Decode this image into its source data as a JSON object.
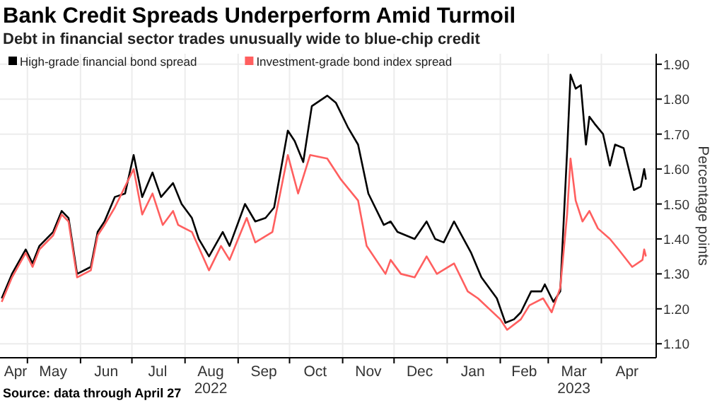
{
  "chart_data": {
    "type": "line",
    "title": "Bank Credit Spreads Underperform Amid Turmoil",
    "subtitle": "Debt in financial sector trades unusually wide to blue-chip credit",
    "ylabel": "Percentage points",
    "annotations": [
      "Source: data through April 27"
    ],
    "legend": "top left",
    "grid": true,
    "line_style": "solid",
    "marker": "none",
    "xlim": [
      "2022-04-15",
      "2023-05-03"
    ],
    "xticks": [
      {
        "value": "2022-04-15",
        "label": "Apr"
      },
      {
        "value": "2022-05-01",
        "label": null
      },
      {
        "value": "2022-05-16",
        "label": "May"
      },
      {
        "value": "2022-06-01",
        "label": null
      },
      {
        "value": "2022-06-16",
        "label": "Jun"
      },
      {
        "value": "2022-07-01",
        "label": null
      },
      {
        "value": "2022-07-16",
        "label": "Jul"
      },
      {
        "value": "2022-08-01",
        "label": null
      },
      {
        "value": "2022-08-16",
        "label": "Aug\n2022"
      },
      {
        "value": "2022-09-01",
        "label": null
      },
      {
        "value": "2022-09-16",
        "label": "Sep"
      },
      {
        "value": "2022-10-01",
        "label": null
      },
      {
        "value": "2022-10-16",
        "label": "Oct"
      },
      {
        "value": "2022-11-01",
        "label": null
      },
      {
        "value": "2022-11-16",
        "label": "Nov"
      },
      {
        "value": "2022-12-01",
        "label": null
      },
      {
        "value": "2022-12-16",
        "label": "Dec"
      },
      {
        "value": "2023-01-01",
        "label": null
      },
      {
        "value": "2023-01-16",
        "label": "Jan"
      },
      {
        "value": "2023-02-01",
        "label": null
      },
      {
        "value": "2023-02-15",
        "label": "Feb"
      },
      {
        "value": "2023-03-01",
        "label": null
      },
      {
        "value": "2023-03-16",
        "label": "Mar\n2023"
      },
      {
        "value": "2023-04-01",
        "label": null
      },
      {
        "value": "2023-04-16",
        "label": "Apr"
      }
    ],
    "ylim": [
      1.06,
      1.93
    ],
    "yticks": [
      {
        "value": 1.1,
        "label": "1.10"
      },
      {
        "value": 1.2,
        "label": "1.20"
      },
      {
        "value": 1.3,
        "label": "1.30"
      },
      {
        "value": 1.4,
        "label": "1.40"
      },
      {
        "value": 1.5,
        "label": "1.50"
      },
      {
        "value": 1.6,
        "label": "1.60"
      },
      {
        "value": 1.7,
        "label": "1.70"
      },
      {
        "value": 1.8,
        "label": "1.80"
      },
      {
        "value": 1.9,
        "label": "1.90"
      }
    ],
    "series": [
      {
        "name": "High-grade financial bond spread",
        "color": "#000000",
        "x": [
          "2022-04-16",
          "2022-04-22",
          "2022-04-30",
          "2022-05-04",
          "2022-05-08",
          "2022-05-16",
          "2022-05-21",
          "2022-05-25",
          "2022-05-30",
          "2022-06-07",
          "2022-06-11",
          "2022-06-15",
          "2022-06-21",
          "2022-06-27",
          "2022-07-02",
          "2022-07-07",
          "2022-07-13",
          "2022-07-18",
          "2022-07-25",
          "2022-07-30",
          "2022-08-05",
          "2022-08-09",
          "2022-08-15",
          "2022-08-23",
          "2022-08-27",
          "2022-09-05",
          "2022-09-11",
          "2022-09-17",
          "2022-09-22",
          "2022-09-30",
          "2022-10-04",
          "2022-10-09",
          "2022-10-14",
          "2022-10-23",
          "2022-10-28",
          "2022-11-04",
          "2022-11-10",
          "2022-11-16",
          "2022-11-25",
          "2022-11-29",
          "2022-12-03",
          "2022-12-13",
          "2022-12-20",
          "2022-12-25",
          "2022-12-30",
          "2023-01-05",
          "2023-01-15",
          "2023-01-21",
          "2023-01-30",
          "2023-02-04",
          "2023-02-09",
          "2023-02-13",
          "2023-02-19",
          "2023-02-25",
          "2023-02-27",
          "2023-03-04",
          "2023-03-08",
          "2023-03-12",
          "2023-03-14",
          "2023-03-17",
          "2023-03-20",
          "2023-03-23",
          "2023-03-25",
          "2023-03-28",
          "2023-04-02",
          "2023-04-06",
          "2023-04-09",
          "2023-04-14",
          "2023-04-20",
          "2023-04-24",
          "2023-04-26",
          "2023-04-27"
        ],
        "values": [
          1.23,
          1.3,
          1.37,
          1.33,
          1.38,
          1.42,
          1.48,
          1.46,
          1.3,
          1.32,
          1.42,
          1.45,
          1.52,
          1.53,
          1.64,
          1.52,
          1.59,
          1.52,
          1.56,
          1.5,
          1.46,
          1.4,
          1.35,
          1.42,
          1.38,
          1.5,
          1.45,
          1.46,
          1.49,
          1.71,
          1.68,
          1.62,
          1.78,
          1.81,
          1.79,
          1.72,
          1.67,
          1.53,
          1.44,
          1.45,
          1.42,
          1.4,
          1.45,
          1.4,
          1.39,
          1.45,
          1.36,
          1.29,
          1.23,
          1.16,
          1.17,
          1.19,
          1.25,
          1.25,
          1.27,
          1.22,
          1.25,
          1.65,
          1.87,
          1.83,
          1.84,
          1.67,
          1.75,
          1.73,
          1.7,
          1.61,
          1.67,
          1.66,
          1.54,
          1.55,
          1.6,
          1.57
        ]
      },
      {
        "name": "Investment-grade bond index spread",
        "color": "#ff5f5f",
        "x": [
          "2022-04-16",
          "2022-04-22",
          "2022-04-30",
          "2022-05-04",
          "2022-05-08",
          "2022-05-16",
          "2022-05-21",
          "2022-05-25",
          "2022-05-30",
          "2022-06-07",
          "2022-06-11",
          "2022-06-15",
          "2022-06-21",
          "2022-07-02",
          "2022-07-07",
          "2022-07-13",
          "2022-07-19",
          "2022-07-25",
          "2022-07-28",
          "2022-08-05",
          "2022-08-15",
          "2022-08-22",
          "2022-08-27",
          "2022-09-06",
          "2022-09-11",
          "2022-09-21",
          "2022-09-30",
          "2022-10-06",
          "2022-10-13",
          "2022-10-23",
          "2022-10-31",
          "2022-11-10",
          "2022-11-15",
          "2022-11-26",
          "2022-11-29",
          "2022-12-05",
          "2022-12-13",
          "2022-12-20",
          "2022-12-26",
          "2023-01-05",
          "2023-01-13",
          "2023-01-19",
          "2023-02-01",
          "2023-02-05",
          "2023-02-13",
          "2023-02-18",
          "2023-02-26",
          "2023-03-03",
          "2023-03-08",
          "2023-03-12",
          "2023-03-14",
          "2023-03-17",
          "2023-03-21",
          "2023-03-25",
          "2023-03-30",
          "2023-04-06",
          "2023-04-11",
          "2023-04-19",
          "2023-04-25",
          "2023-04-26",
          "2023-04-27"
        ],
        "values": [
          1.22,
          1.29,
          1.36,
          1.32,
          1.37,
          1.41,
          1.47,
          1.45,
          1.29,
          1.31,
          1.41,
          1.44,
          1.49,
          1.6,
          1.47,
          1.53,
          1.44,
          1.48,
          1.44,
          1.42,
          1.31,
          1.38,
          1.34,
          1.46,
          1.39,
          1.42,
          1.64,
          1.53,
          1.64,
          1.63,
          1.57,
          1.51,
          1.38,
          1.3,
          1.34,
          1.3,
          1.29,
          1.35,
          1.3,
          1.33,
          1.25,
          1.23,
          1.17,
          1.14,
          1.17,
          1.21,
          1.23,
          1.19,
          1.26,
          1.47,
          1.63,
          1.51,
          1.45,
          1.48,
          1.43,
          1.4,
          1.37,
          1.32,
          1.34,
          1.37,
          1.35
        ]
      }
    ]
  }
}
